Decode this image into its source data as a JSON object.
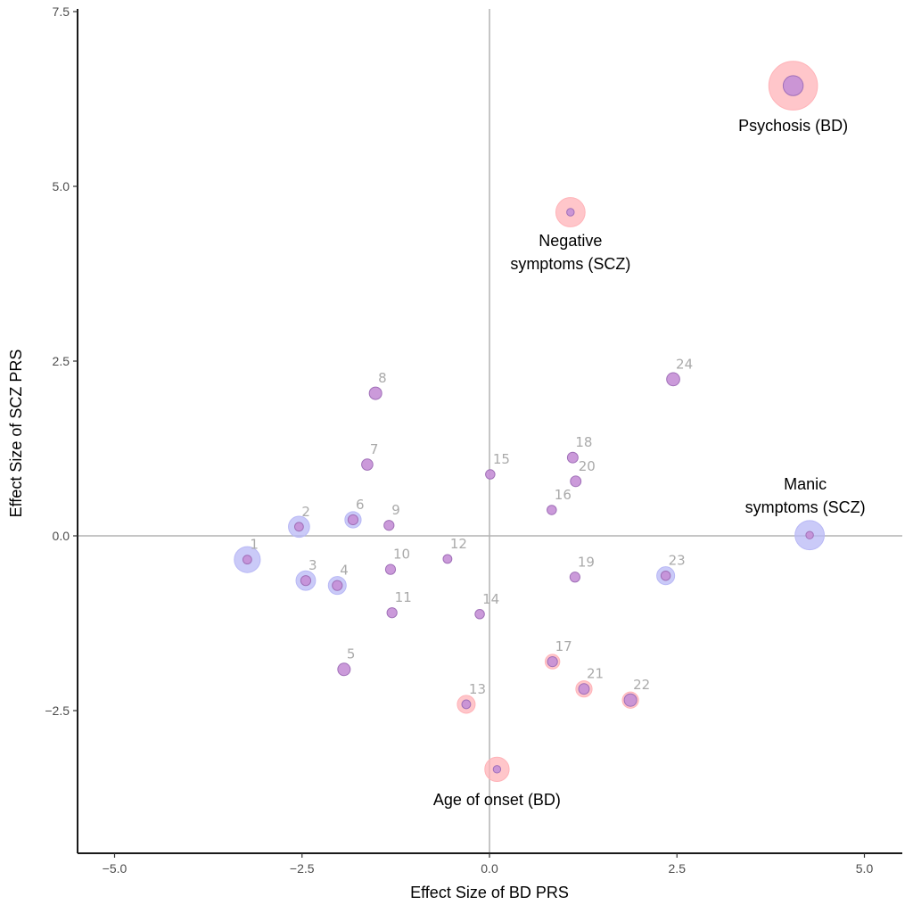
{
  "chart_data": {
    "type": "scatter",
    "title": "",
    "xlabel": "Effect Size of BD PRS",
    "ylabel": "Effect Size of SCZ PRS",
    "xlim": [
      -5.5,
      5.5
    ],
    "ylim": [
      -4.6,
      7.55
    ],
    "xticks": [
      -5.0,
      -2.5,
      0.0,
      2.5,
      5.0
    ],
    "xtick_labels": [
      "−5.0",
      "−2.5",
      "0.0",
      "2.5",
      "5.0"
    ],
    "yticks": [
      -2.5,
      0.0,
      2.5,
      5.0,
      7.5
    ],
    "ytick_labels": [
      "−2.5",
      "0.0",
      "2.5",
      "5.0",
      "7.5"
    ],
    "grid": false,
    "reference_lines": {
      "x": 0,
      "y": 0
    },
    "colors": {
      "inner": "#c58fd6",
      "inner_stroke": "#a070b8",
      "halo_bd": "#ffb3b8",
      "halo_scz": "#b8b8f5",
      "ref_line": "#b3b3b3",
      "axis": "#1a1a1a",
      "point_label": "#aaaaaa"
    },
    "points": [
      {
        "label": "1",
        "x": -3.23,
        "y": -0.34,
        "halo": "scz",
        "halo_size": 1.6
      },
      {
        "label": "2",
        "x": -2.54,
        "y": 0.13,
        "halo": "scz",
        "halo_size": 1.3
      },
      {
        "label": "3",
        "x": -2.45,
        "y": -0.64,
        "halo": "scz",
        "halo_size": 1.2
      },
      {
        "label": "4",
        "x": -2.03,
        "y": -0.71,
        "halo": "scz",
        "halo_size": 1.1
      },
      {
        "label": "5",
        "x": -1.94,
        "y": -1.91,
        "halo": "none",
        "halo_size": 0
      },
      {
        "label": "6",
        "x": -1.82,
        "y": 0.23,
        "halo": "scz",
        "halo_size": 1.0
      },
      {
        "label": "7",
        "x": -1.63,
        "y": 1.02,
        "halo": "none",
        "halo_size": 0
      },
      {
        "label": "8",
        "x": -1.52,
        "y": 2.04,
        "halo": "none",
        "halo_size": 0
      },
      {
        "label": "9",
        "x": -1.34,
        "y": 0.15,
        "halo": "none",
        "halo_size": 0
      },
      {
        "label": "10",
        "x": -1.32,
        "y": -0.48,
        "halo": "none",
        "halo_size": 0
      },
      {
        "label": "11",
        "x": -1.3,
        "y": -1.1,
        "halo": "none",
        "halo_size": 0
      },
      {
        "label": "12",
        "x": -0.56,
        "y": -0.33,
        "halo": "none",
        "halo_size": 0
      },
      {
        "label": "13",
        "x": -0.31,
        "y": -2.41,
        "halo": "bd",
        "halo_size": 1.1
      },
      {
        "label": "14",
        "x": -0.13,
        "y": -1.12,
        "halo": "none",
        "halo_size": 0
      },
      {
        "label": "15",
        "x": 0.01,
        "y": 0.88,
        "halo": "none",
        "halo_size": 0
      },
      {
        "label": "16",
        "x": 0.83,
        "y": 0.37,
        "halo": "none",
        "halo_size": 0
      },
      {
        "label": "17",
        "x": 0.84,
        "y": -1.8,
        "halo": "bd",
        "halo_size": 0.9
      },
      {
        "label": "18",
        "x": 1.11,
        "y": 1.12,
        "halo": "none",
        "halo_size": 0
      },
      {
        "label": "19",
        "x": 1.14,
        "y": -0.59,
        "halo": "none",
        "halo_size": 0
      },
      {
        "label": "20",
        "x": 1.15,
        "y": 0.78,
        "halo": "none",
        "halo_size": 0
      },
      {
        "label": "21",
        "x": 1.26,
        "y": -2.19,
        "halo": "bd",
        "halo_size": 1.0
      },
      {
        "label": "22",
        "x": 1.88,
        "y": -2.35,
        "halo": "bd",
        "halo_size": 1.0
      },
      {
        "label": "23",
        "x": 2.35,
        "y": -0.57,
        "halo": "scz",
        "halo_size": 1.1
      },
      {
        "label": "24",
        "x": 2.45,
        "y": 2.24,
        "halo": "none",
        "halo_size": 0
      }
    ],
    "inner_sizes": {
      "1": 0.7,
      "2": 0.7,
      "3": 0.8,
      "4": 0.8,
      "5": 1.0,
      "6": 0.8,
      "7": 0.9,
      "8": 1.0,
      "9": 0.8,
      "10": 0.8,
      "11": 0.8,
      "12": 0.7,
      "13": 0.7,
      "14": 0.75,
      "15": 0.75,
      "16": 0.75,
      "17": 0.8,
      "18": 0.85,
      "19": 0.8,
      "20": 0.85,
      "21": 0.85,
      "22": 1.0,
      "23": 0.75,
      "24": 1.05
    },
    "annotated": [
      {
        "name": "psychosis-bd",
        "lines": [
          "Psychosis (BD)"
        ],
        "x": 4.05,
        "y": 6.44,
        "halo": "bd",
        "halo_size": 3.0,
        "inner_size": 1.6
      },
      {
        "name": "negative-symptoms-scz",
        "lines": [
          "Negative",
          "symptoms (SCZ)"
        ],
        "x": 1.08,
        "y": 4.63,
        "halo": "bd",
        "halo_size": 1.8,
        "inner_size": 0.6
      },
      {
        "name": "manic-symptoms-scz",
        "lines": [
          "Manic",
          "symptoms (SCZ)"
        ],
        "x": 4.27,
        "y": 0.01,
        "halo": "scz",
        "halo_size": 1.8,
        "inner_size": 0.6
      },
      {
        "name": "age-of-onset-bd",
        "lines": [
          "Age of onset (BD)"
        ],
        "x": 0.1,
        "y": -3.34,
        "halo": "bd",
        "halo_size": 1.5,
        "inner_size": 0.6
      }
    ]
  }
}
